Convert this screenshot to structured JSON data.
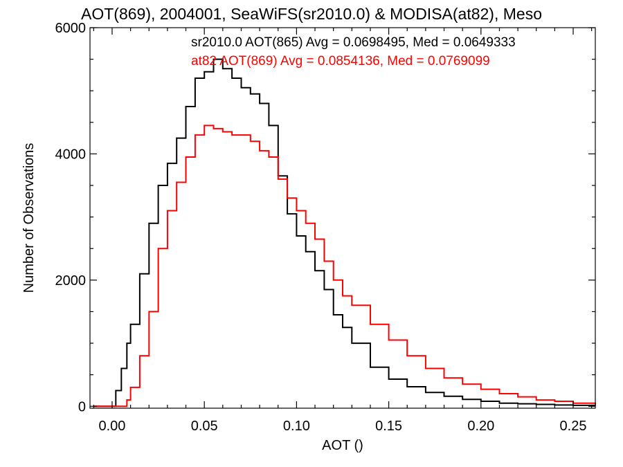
{
  "chart_data": {
    "type": "line",
    "title": "AOT(869), 2004001, SeaWiFS(sr2010.0) & MODISA(at82), Meso",
    "xlabel": "AOT ()",
    "ylabel": "Number of Observations",
    "xlim": [
      -0.012,
      0.262
    ],
    "ylim": [
      -30,
      6000
    ],
    "xticks": [
      "0.00",
      "0.05",
      "0.10",
      "0.15",
      "0.20",
      "0.25"
    ],
    "xtick_values": [
      0.0,
      0.05,
      0.1,
      0.15,
      0.2,
      0.25
    ],
    "yticks": [
      "0",
      "2000",
      "4000",
      "6000"
    ],
    "ytick_values": [
      0,
      2000,
      4000,
      6000
    ],
    "grid": false,
    "legend_position": "top-right",
    "series": [
      {
        "name": "sr2010.0 AOT(865) Avg = 0.0698495, Med = 0.0649333",
        "color": "#000000",
        "x": [
          -0.01,
          0.0,
          0.002,
          0.005,
          0.008,
          0.01,
          0.015,
          0.02,
          0.025,
          0.03,
          0.035,
          0.04,
          0.045,
          0.05,
          0.055,
          0.06,
          0.065,
          0.07,
          0.075,
          0.08,
          0.085,
          0.09,
          0.095,
          0.1,
          0.105,
          0.11,
          0.115,
          0.12,
          0.125,
          0.13,
          0.14,
          0.15,
          0.16,
          0.17,
          0.18,
          0.19,
          0.2,
          0.21,
          0.22,
          0.23,
          0.24,
          0.25,
          0.262
        ],
        "y": [
          0,
          0,
          250,
          600,
          1000,
          1300,
          2100,
          2900,
          3500,
          3850,
          4250,
          4750,
          5200,
          5300,
          5500,
          5350,
          5200,
          5050,
          4950,
          4800,
          4450,
          3650,
          3050,
          2700,
          2450,
          2150,
          1850,
          1450,
          1250,
          1000,
          620,
          430,
          310,
          220,
          160,
          110,
          80,
          50,
          40,
          30,
          20,
          15,
          10
        ]
      },
      {
        "name": "at82 AOT(869) Avg = 0.0854136, Med = 0.0769099",
        "color": "#ff0000",
        "x": [
          -0.01,
          0.0,
          0.005,
          0.008,
          0.01,
          0.015,
          0.02,
          0.025,
          0.03,
          0.035,
          0.04,
          0.045,
          0.05,
          0.055,
          0.06,
          0.065,
          0.07,
          0.075,
          0.08,
          0.085,
          0.09,
          0.095,
          0.1,
          0.105,
          0.11,
          0.115,
          0.12,
          0.125,
          0.13,
          0.14,
          0.15,
          0.16,
          0.17,
          0.18,
          0.19,
          0.2,
          0.21,
          0.22,
          0.23,
          0.24,
          0.25,
          0.262
        ],
        "y": [
          0,
          0,
          0,
          100,
          300,
          800,
          1500,
          2500,
          3100,
          3550,
          3950,
          4300,
          4450,
          4400,
          4350,
          4300,
          4300,
          4200,
          4050,
          3950,
          3600,
          3300,
          3100,
          2900,
          2650,
          2300,
          2000,
          1750,
          1600,
          1300,
          1050,
          800,
          600,
          450,
          350,
          270,
          200,
          150,
          100,
          80,
          50,
          30
        ]
      }
    ]
  }
}
